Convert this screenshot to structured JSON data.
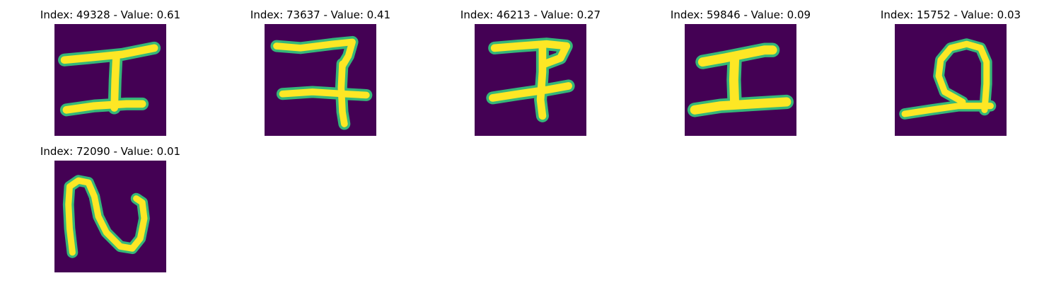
{
  "colors": {
    "background": "#440154",
    "stroke_outer": "#35b779",
    "stroke_inner": "#fde725"
  },
  "panels": [
    {
      "title": "Index: 49328 - Value: 0.61"
    },
    {
      "title": "Index: 73637 - Value: 0.41"
    },
    {
      "title": "Index: 46213 - Value: 0.27"
    },
    {
      "title": "Index: 59846 - Value: 0.09"
    },
    {
      "title": "Index: 15752 - Value: 0.03"
    },
    {
      "title": "Index: 72090 - Value: 0.01"
    }
  ]
}
